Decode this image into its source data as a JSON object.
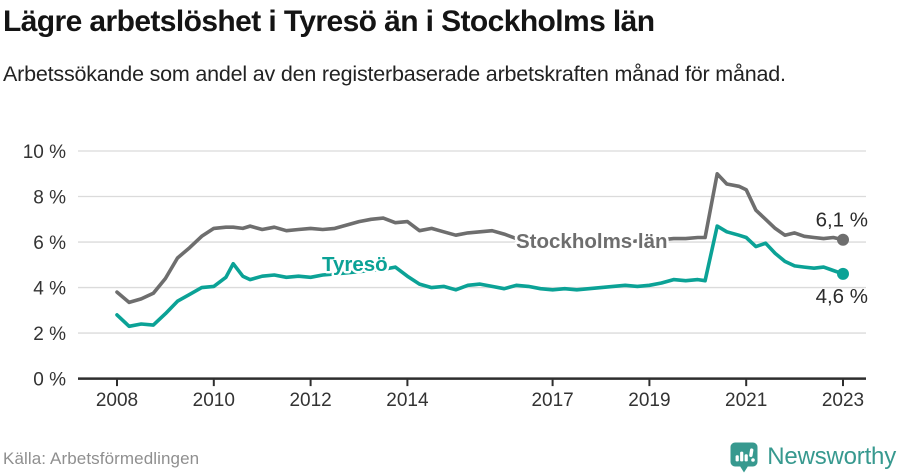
{
  "header": {
    "title": "Lägre arbetslöshet i Tyresö än i Stockholms län",
    "subtitle": "Arbetssökande som andel av den registerbaserade arbetskraften månad för månad."
  },
  "footer": {
    "source": "Källa: Arbetsförmedlingen",
    "logo_text": "Newsworthy",
    "logo_icon": "newsworthy-speech-bubble-bar-chart-icon"
  },
  "colors": {
    "stockholm_line": "#6e6e6e",
    "tyreso_line": "#0ba296",
    "axis": "#2e2e2e",
    "gridline": "#dbdbdb",
    "tick_label": "#333333",
    "end_label": "#2b2b2b",
    "source_text": "#8f8f8f",
    "logo_teal": "#37998f",
    "background": "#ffffff"
  },
  "chart_data": {
    "type": "line",
    "title": "Lägre arbetslöshet i Tyresö än i Stockholms län",
    "xlabel": "",
    "ylabel": "",
    "ylim": [
      0,
      10
    ],
    "xlim": [
      2007.2,
      2023.5
    ],
    "grid": "horizontal",
    "legend_position": "inline-labels",
    "yticks": {
      "values": [
        0,
        2,
        4,
        6,
        8,
        10
      ],
      "labels": [
        "0 %",
        "2 %",
        "4 %",
        "6 %",
        "8 %",
        "10 %"
      ]
    },
    "xticks": {
      "values": [
        2008,
        2010,
        2012,
        2014,
        2017,
        2019,
        2021,
        2023
      ],
      "labels": [
        "2008",
        "2010",
        "2012",
        "2014",
        "2017",
        "2019",
        "2021",
        "2023"
      ]
    },
    "x": [
      2008.0,
      2008.25,
      2008.5,
      2008.75,
      2009.0,
      2009.25,
      2009.5,
      2009.75,
      2010.0,
      2010.25,
      2010.4,
      2010.6,
      2010.75,
      2011.0,
      2011.25,
      2011.5,
      2011.75,
      2012.0,
      2012.25,
      2012.5,
      2012.75,
      2013.0,
      2013.25,
      2013.5,
      2013.75,
      2014.0,
      2014.25,
      2014.5,
      2014.75,
      2015.0,
      2015.25,
      2015.5,
      2015.75,
      2016.0,
      2016.25,
      2016.5,
      2016.75,
      2017.0,
      2017.25,
      2017.5,
      2017.75,
      2018.0,
      2018.25,
      2018.5,
      2018.75,
      2019.0,
      2019.25,
      2019.5,
      2019.75,
      2020.0,
      2020.15,
      2020.4,
      2020.6,
      2020.85,
      2021.0,
      2021.2,
      2021.4,
      2021.6,
      2021.8,
      2022.0,
      2022.2,
      2022.4,
      2022.6,
      2022.8,
      2023.0
    ],
    "series": [
      {
        "name": "Stockholms län",
        "color": "#6e6e6e",
        "end_label": "6,1 %",
        "end_value": 6.1,
        "values": [
          3.8,
          3.35,
          3.5,
          3.75,
          4.4,
          5.3,
          5.75,
          6.25,
          6.6,
          6.65,
          6.65,
          6.6,
          6.7,
          6.55,
          6.65,
          6.5,
          6.55,
          6.6,
          6.55,
          6.6,
          6.75,
          6.9,
          7.0,
          7.05,
          6.85,
          6.9,
          6.5,
          6.6,
          6.45,
          6.3,
          6.4,
          6.45,
          6.5,
          6.35,
          6.15,
          6.05,
          5.95,
          5.9,
          5.9,
          5.95,
          6.0,
          6.0,
          5.95,
          6.0,
          6.05,
          6.1,
          6.1,
          6.15,
          6.15,
          6.2,
          6.2,
          9.0,
          8.55,
          8.45,
          8.3,
          7.4,
          7.0,
          6.6,
          6.3,
          6.4,
          6.25,
          6.2,
          6.15,
          6.2,
          6.1
        ]
      },
      {
        "name": "Tyresö",
        "color": "#0ba296",
        "end_label": "4,6 %",
        "end_value": 4.6,
        "values": [
          2.8,
          2.3,
          2.4,
          2.35,
          2.85,
          3.4,
          3.7,
          4.0,
          4.05,
          4.45,
          5.05,
          4.5,
          4.35,
          4.5,
          4.55,
          4.45,
          4.5,
          4.45,
          4.55,
          4.6,
          4.65,
          4.7,
          4.75,
          4.8,
          4.9,
          4.5,
          4.15,
          4.0,
          4.05,
          3.9,
          4.1,
          4.15,
          4.05,
          3.95,
          4.1,
          4.05,
          3.95,
          3.9,
          3.95,
          3.9,
          3.95,
          4.0,
          4.05,
          4.1,
          4.05,
          4.1,
          4.2,
          4.35,
          4.3,
          4.35,
          4.3,
          6.7,
          6.45,
          6.3,
          6.2,
          5.8,
          5.95,
          5.5,
          5.15,
          4.95,
          4.9,
          4.85,
          4.9,
          4.75,
          4.6
        ]
      }
    ]
  }
}
